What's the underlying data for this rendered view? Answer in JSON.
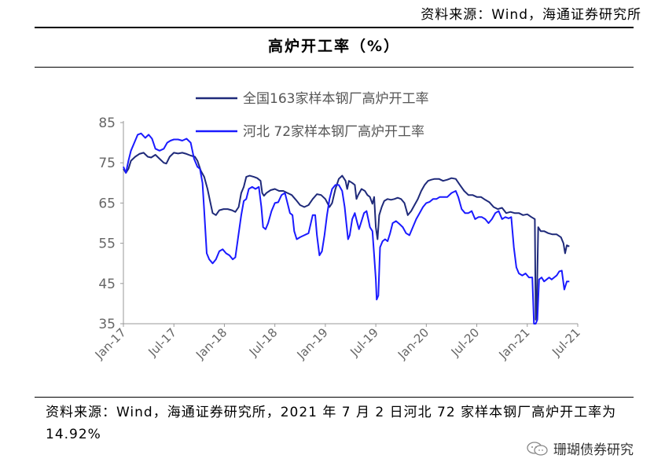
{
  "header": {
    "source": "资料来源：Wind，海通证券研究所"
  },
  "chart_data": {
    "type": "line",
    "title": "高炉开工率（%）",
    "ylim": [
      35,
      85
    ],
    "yticks": [
      35,
      45,
      55,
      65,
      75,
      85
    ],
    "xticks": [
      "Jan-17",
      "Jul-17",
      "Jan-18",
      "Jul-18",
      "Jan-19",
      "Jul-19",
      "Jan-20",
      "Jul-20",
      "Jan-21",
      "Jul-21"
    ],
    "legend": "top-left",
    "grid": false,
    "series": [
      {
        "name": "全国163家样本钢厂高炉开工率",
        "color": "#1f2a7a",
        "points": [
          [
            0.0,
            73.5
          ],
          [
            0.3,
            72.5
          ],
          [
            0.6,
            73.5
          ],
          [
            0.9,
            75.5
          ],
          [
            1.4,
            76.5
          ],
          [
            1.9,
            77.2
          ],
          [
            2.4,
            77.5
          ],
          [
            2.9,
            76.5
          ],
          [
            3.3,
            76.3
          ],
          [
            3.8,
            77
          ],
          [
            4.3,
            76
          ],
          [
            4.8,
            75
          ],
          [
            5.1,
            74.8
          ],
          [
            5.5,
            76.5
          ],
          [
            6.0,
            77.5
          ],
          [
            6.5,
            77.3
          ],
          [
            7.0,
            77.5
          ],
          [
            7.5,
            77.2
          ],
          [
            8.0,
            76.8
          ],
          [
            8.5,
            76.5
          ],
          [
            8.8,
            75.5
          ],
          [
            9.2,
            73
          ],
          [
            9.6,
            71.5
          ],
          [
            10.0,
            68.5
          ],
          [
            10.3,
            65.5
          ],
          [
            10.6,
            62.5
          ],
          [
            11.0,
            62
          ],
          [
            11.4,
            63.2
          ],
          [
            11.9,
            63.5
          ],
          [
            12.4,
            63.5
          ],
          [
            12.9,
            63.2
          ],
          [
            13.3,
            62.8
          ],
          [
            13.7,
            64
          ],
          [
            14.0,
            67.5
          ],
          [
            14.3,
            69
          ],
          [
            14.6,
            71.5
          ],
          [
            15.0,
            71.8
          ],
          [
            15.5,
            71.5
          ],
          [
            15.9,
            71.2
          ],
          [
            16.3,
            70.5
          ],
          [
            16.5,
            67.5
          ],
          [
            16.7,
            66.8
          ],
          [
            17.0,
            67.5
          ],
          [
            17.5,
            68.2
          ],
          [
            18.0,
            68.5
          ],
          [
            18.5,
            68
          ],
          [
            19.0,
            68
          ],
          [
            19.5,
            67.5
          ],
          [
            20.0,
            67
          ],
          [
            20.5,
            65.8
          ],
          [
            21.0,
            64.5
          ],
          [
            21.5,
            64
          ],
          [
            22.0,
            64.5
          ],
          [
            22.5,
            66
          ],
          [
            23.0,
            67.2
          ],
          [
            23.5,
            67
          ],
          [
            24.0,
            66
          ],
          [
            24.5,
            64
          ],
          [
            24.8,
            65
          ],
          [
            25.2,
            68.5
          ],
          [
            25.6,
            71
          ],
          [
            26.0,
            71.8
          ],
          [
            26.4,
            70.5
          ],
          [
            26.6,
            68.5
          ],
          [
            26.8,
            70.5
          ],
          [
            27.2,
            70
          ],
          [
            27.5,
            69.5
          ],
          [
            27.7,
            66
          ],
          [
            27.9,
            67
          ],
          [
            28.3,
            68.5
          ],
          [
            28.7,
            68
          ],
          [
            29.0,
            67
          ],
          [
            29.3,
            66.5
          ],
          [
            29.6,
            64.8
          ],
          [
            29.8,
            66.5
          ],
          [
            30.0,
            59
          ],
          [
            30.2,
            56
          ],
          [
            30.4,
            62
          ],
          [
            30.7,
            64
          ],
          [
            31.0,
            65.5
          ],
          [
            31.4,
            66
          ],
          [
            31.8,
            65.8
          ],
          [
            32.2,
            66
          ],
          [
            32.6,
            66.3
          ],
          [
            33.0,
            66
          ],
          [
            33.4,
            65
          ],
          [
            33.8,
            62
          ],
          [
            34.2,
            63
          ],
          [
            34.6,
            64.5
          ],
          [
            35.0,
            66
          ],
          [
            35.4,
            68
          ],
          [
            35.8,
            69.5
          ],
          [
            36.2,
            70.5
          ],
          [
            36.6,
            70.8
          ],
          [
            37.0,
            71
          ],
          [
            37.5,
            71
          ],
          [
            38.0,
            70.5
          ],
          [
            38.5,
            70.8
          ],
          [
            39.0,
            71.2
          ],
          [
            39.5,
            71
          ],
          [
            40.0,
            69.5
          ],
          [
            40.5,
            68
          ],
          [
            41.0,
            67
          ],
          [
            41.5,
            67
          ],
          [
            42.0,
            66.5
          ],
          [
            42.5,
            66.5
          ],
          [
            43.0,
            65.8
          ],
          [
            43.5,
            65.2
          ],
          [
            44.0,
            64
          ],
          [
            44.5,
            63.5
          ],
          [
            45.0,
            63.8
          ],
          [
            45.5,
            62.5
          ],
          [
            46.0,
            62.8
          ],
          [
            46.5,
            62.5
          ],
          [
            47.0,
            62.5
          ],
          [
            47.5,
            62
          ],
          [
            48.0,
            62.2
          ],
          [
            48.5,
            61.5
          ],
          [
            48.9,
            61
          ],
          [
            49.0,
            36
          ],
          [
            49.1,
            37
          ],
          [
            49.3,
            59
          ],
          [
            49.6,
            58
          ],
          [
            50.0,
            58
          ],
          [
            50.5,
            57.5
          ],
          [
            51.0,
            57.2
          ],
          [
            51.5,
            57.2
          ],
          [
            52.0,
            56.5
          ],
          [
            52.3,
            55
          ],
          [
            52.5,
            52.5
          ],
          [
            52.7,
            54.5
          ],
          [
            53.0,
            54.2
          ]
        ]
      },
      {
        "name": "河北 72家样本钢厂高炉开工率",
        "color": "#1a1aff",
        "points": [
          [
            0.0,
            74
          ],
          [
            0.3,
            72.5
          ],
          [
            0.6,
            75.5
          ],
          [
            0.9,
            78
          ],
          [
            1.3,
            80
          ],
          [
            1.7,
            82
          ],
          [
            2.1,
            82.3
          ],
          [
            2.6,
            81.2
          ],
          [
            3.0,
            82
          ],
          [
            3.4,
            81
          ],
          [
            3.8,
            78.5
          ],
          [
            4.3,
            78
          ],
          [
            4.8,
            78.5
          ],
          [
            5.2,
            80
          ],
          [
            5.6,
            80.5
          ],
          [
            6.0,
            80.8
          ],
          [
            6.5,
            80.8
          ],
          [
            7.0,
            80.5
          ],
          [
            7.5,
            81
          ],
          [
            8.0,
            80
          ],
          [
            8.4,
            76
          ],
          [
            8.8,
            74
          ],
          [
            9.1,
            73.5
          ],
          [
            9.4,
            70
          ],
          [
            9.6,
            63
          ],
          [
            9.9,
            52.5
          ],
          [
            10.2,
            51
          ],
          [
            10.6,
            50
          ],
          [
            11.0,
            51
          ],
          [
            11.4,
            53
          ],
          [
            11.8,
            53.5
          ],
          [
            12.2,
            52.5
          ],
          [
            12.6,
            52
          ],
          [
            13.0,
            51
          ],
          [
            13.3,
            51.5
          ],
          [
            13.6,
            56
          ],
          [
            14.0,
            62
          ],
          [
            14.3,
            65.5
          ],
          [
            14.6,
            66
          ],
          [
            14.9,
            68.5
          ],
          [
            15.3,
            69
          ],
          [
            15.7,
            68.5
          ],
          [
            16.1,
            69
          ],
          [
            16.4,
            64
          ],
          [
            16.6,
            59
          ],
          [
            16.9,
            58.5
          ],
          [
            17.2,
            60
          ],
          [
            17.6,
            63
          ],
          [
            18.0,
            65
          ],
          [
            18.4,
            65.2
          ],
          [
            18.8,
            67
          ],
          [
            19.2,
            67.5
          ],
          [
            19.5,
            65
          ],
          [
            19.8,
            62.5
          ],
          [
            20.1,
            62
          ],
          [
            20.3,
            58
          ],
          [
            20.6,
            56
          ],
          [
            21.0,
            56.5
          ],
          [
            21.5,
            57
          ],
          [
            22.0,
            57.5
          ],
          [
            22.5,
            62
          ],
          [
            22.8,
            62
          ],
          [
            23.0,
            57
          ],
          [
            23.3,
            52
          ],
          [
            23.6,
            53
          ],
          [
            23.9,
            57
          ],
          [
            24.2,
            62
          ],
          [
            24.5,
            66
          ],
          [
            24.8,
            68.5
          ],
          [
            25.2,
            69.5
          ],
          [
            25.6,
            69.5
          ],
          [
            26.0,
            68
          ],
          [
            26.3,
            64
          ],
          [
            26.5,
            60
          ],
          [
            26.7,
            56
          ],
          [
            26.9,
            57
          ],
          [
            27.2,
            61
          ],
          [
            27.5,
            62.5
          ],
          [
            27.8,
            60
          ],
          [
            28.0,
            58.5
          ],
          [
            28.3,
            60.5
          ],
          [
            28.6,
            62.5
          ],
          [
            28.9,
            63
          ],
          [
            29.1,
            61
          ],
          [
            29.3,
            59
          ],
          [
            29.6,
            58
          ],
          [
            29.8,
            52
          ],
          [
            30.0,
            46
          ],
          [
            30.1,
            41
          ],
          [
            30.3,
            42
          ],
          [
            30.5,
            54
          ],
          [
            30.8,
            55.5
          ],
          [
            31.1,
            56
          ],
          [
            31.4,
            55.5
          ],
          [
            31.7,
            57.5
          ],
          [
            32.0,
            60
          ],
          [
            32.4,
            60.5
          ],
          [
            32.8,
            59.8
          ],
          [
            33.2,
            59
          ],
          [
            33.6,
            57.5
          ],
          [
            34.0,
            57
          ],
          [
            34.4,
            59
          ],
          [
            34.8,
            61
          ],
          [
            35.2,
            62.5
          ],
          [
            35.6,
            64
          ],
          [
            36.0,
            65
          ],
          [
            36.4,
            65.3
          ],
          [
            36.8,
            66
          ],
          [
            37.2,
            66
          ],
          [
            37.6,
            66.5
          ],
          [
            38.0,
            66.5
          ],
          [
            38.5,
            66.5
          ],
          [
            39.0,
            67.5
          ],
          [
            39.5,
            68
          ],
          [
            39.8,
            66.5
          ],
          [
            40.2,
            63.5
          ],
          [
            40.6,
            62.5
          ],
          [
            41.0,
            62.5
          ],
          [
            41.4,
            63
          ],
          [
            41.8,
            61
          ],
          [
            42.2,
            61.5
          ],
          [
            42.6,
            61.5
          ],
          [
            43.0,
            61
          ],
          [
            43.4,
            60
          ],
          [
            43.8,
            61
          ],
          [
            44.2,
            62.5
          ],
          [
            44.6,
            63
          ],
          [
            45.0,
            61
          ],
          [
            45.4,
            61.5
          ],
          [
            45.8,
            61.2
          ],
          [
            46.1,
            61.5
          ],
          [
            46.4,
            54
          ],
          [
            46.7,
            49
          ],
          [
            47.0,
            47.5
          ],
          [
            47.4,
            47
          ],
          [
            47.8,
            47.5
          ],
          [
            48.2,
            46.5
          ],
          [
            48.6,
            46.5
          ],
          [
            48.8,
            35
          ],
          [
            49.0,
            35
          ],
          [
            49.2,
            36
          ],
          [
            49.4,
            46
          ],
          [
            49.7,
            46.5
          ],
          [
            50.0,
            45.5
          ],
          [
            50.3,
            46
          ],
          [
            50.6,
            46.5
          ],
          [
            50.9,
            46
          ],
          [
            51.2,
            46.5
          ],
          [
            51.5,
            47
          ],
          [
            51.8,
            48
          ],
          [
            52.1,
            48.2
          ],
          [
            52.4,
            43.5
          ],
          [
            52.7,
            45.5
          ],
          [
            53.0,
            45.5
          ]
        ]
      }
    ]
  },
  "footnote": {
    "text": "资料来源：Wind，海通证券研究所，2021 年 7 月 2 日河北 72 家样本钢厂高炉开工率为 14.92%"
  },
  "watermark": {
    "text": "珊瑚债券研究"
  }
}
